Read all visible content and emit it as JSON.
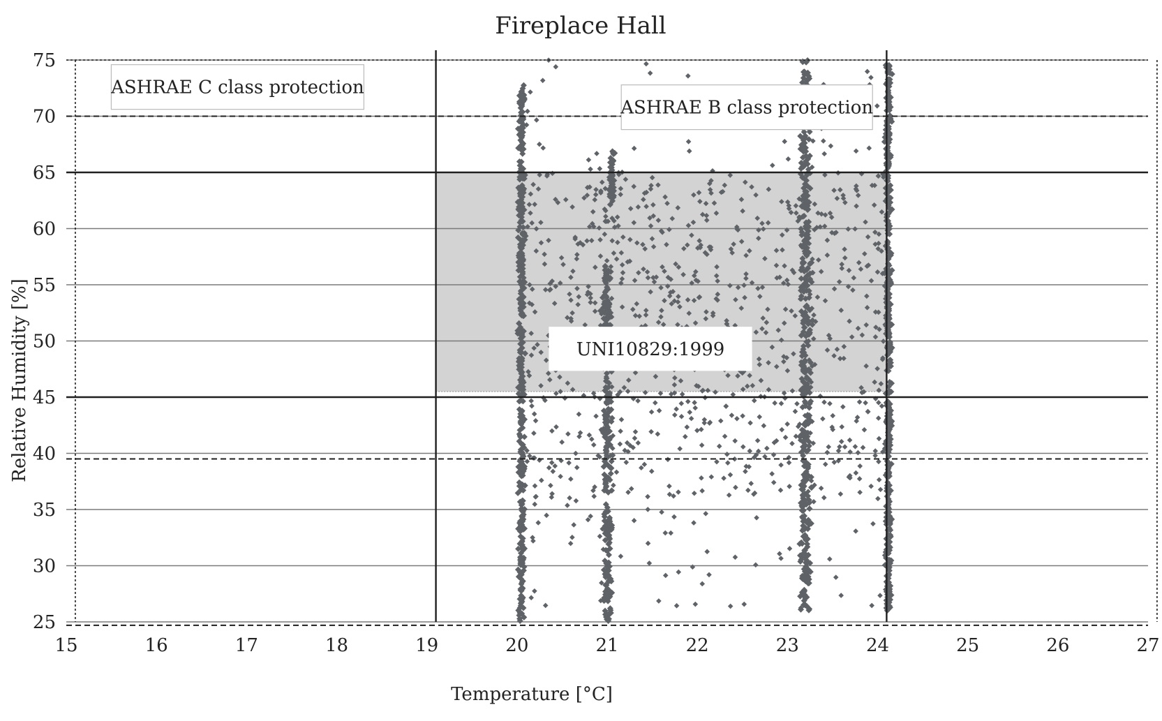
{
  "chart_data": {
    "type": "scatter",
    "title": "Fireplace Hall",
    "xlabel": "Temperature [°C]",
    "ylabel": "Relative Humidity [%]",
    "xlim": [
      15,
      27
    ],
    "ylim": [
      25,
      75
    ],
    "x_ticks": [
      15,
      16,
      17,
      18,
      19,
      20,
      21,
      22,
      23,
      24,
      25,
      26,
      27
    ],
    "y_ticks": [
      25,
      30,
      35,
      40,
      45,
      50,
      55,
      60,
      65,
      70,
      75
    ],
    "grid": true,
    "colors": {
      "points": "#5f6367",
      "zone_fill": "#d3d3d3",
      "gridline": "#7a7a7a",
      "reference_line": "#1f1f1f"
    },
    "regions": [
      {
        "label": "UNI10829:1999",
        "x": [
          19.1,
          24.1
        ],
        "y": [
          45.5,
          65
        ]
      },
      {
        "label": "ASHRAE B class protection",
        "x": [
          19.1,
          24.1
        ],
        "y": [
          45,
          65
        ]
      },
      {
        "label": "ASHRAE C class protection",
        "x": [
          15.1,
          27.1
        ],
        "y": [
          25,
          75
        ]
      }
    ],
    "reference_lines": {
      "solid_horizontal": [
        65,
        45
      ],
      "dashed_horizontal": [
        70,
        39.5,
        24.7
      ],
      "solid_vertical": [
        19.1,
        24.1
      ],
      "dotted_vertical": [
        15.1,
        27.1
      ]
    },
    "clusters": [
      {
        "x": 20.05,
        "y": [
          25,
          73
        ],
        "spread": 0.05
      },
      {
        "x": 21.0,
        "y": [
          25,
          57
        ],
        "spread": 0.07
      },
      {
        "x": 21.05,
        "y": [
          62,
          67
        ],
        "spread": 0.05
      },
      {
        "x": 23.2,
        "y": [
          26,
          75
        ],
        "spread": 0.09
      },
      {
        "x": 24.12,
        "y": [
          26,
          75
        ],
        "spread": 0.05
      }
    ],
    "scatter_region": {
      "x": [
        20.1,
        24.1
      ],
      "y": [
        26,
        75
      ]
    }
  }
}
